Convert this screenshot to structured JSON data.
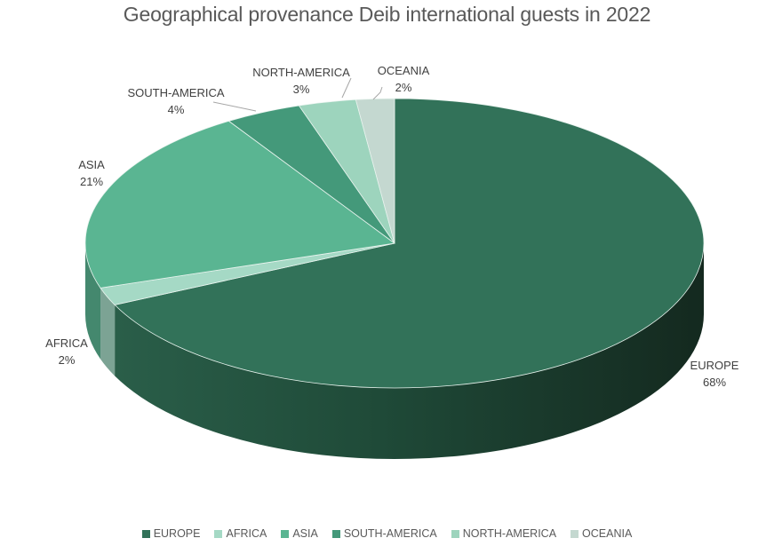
{
  "chart_data": {
    "type": "pie",
    "title": "Geographical provenance Deib international guests in 2022",
    "slices": [
      {
        "name": "EUROPE",
        "value": 68,
        "label": "68%",
        "color": "#327259"
      },
      {
        "name": "AFRICA",
        "value": 2,
        "label": "2%",
        "color": "#a5d9c5"
      },
      {
        "name": "ASIA",
        "value": 21,
        "label": "21%",
        "color": "#5ab592"
      },
      {
        "name": "SOUTH-AMERICA",
        "value": 4,
        "label": "4%",
        "color": "#44997a"
      },
      {
        "name": "NORTH-AMERICA",
        "value": 3,
        "label": "3%",
        "color": "#9dd4bd"
      },
      {
        "name": "OCEANIA",
        "value": 2,
        "label": "2%",
        "color": "#c4d8d0"
      }
    ],
    "legend_position": "bottom",
    "style": "3d"
  }
}
